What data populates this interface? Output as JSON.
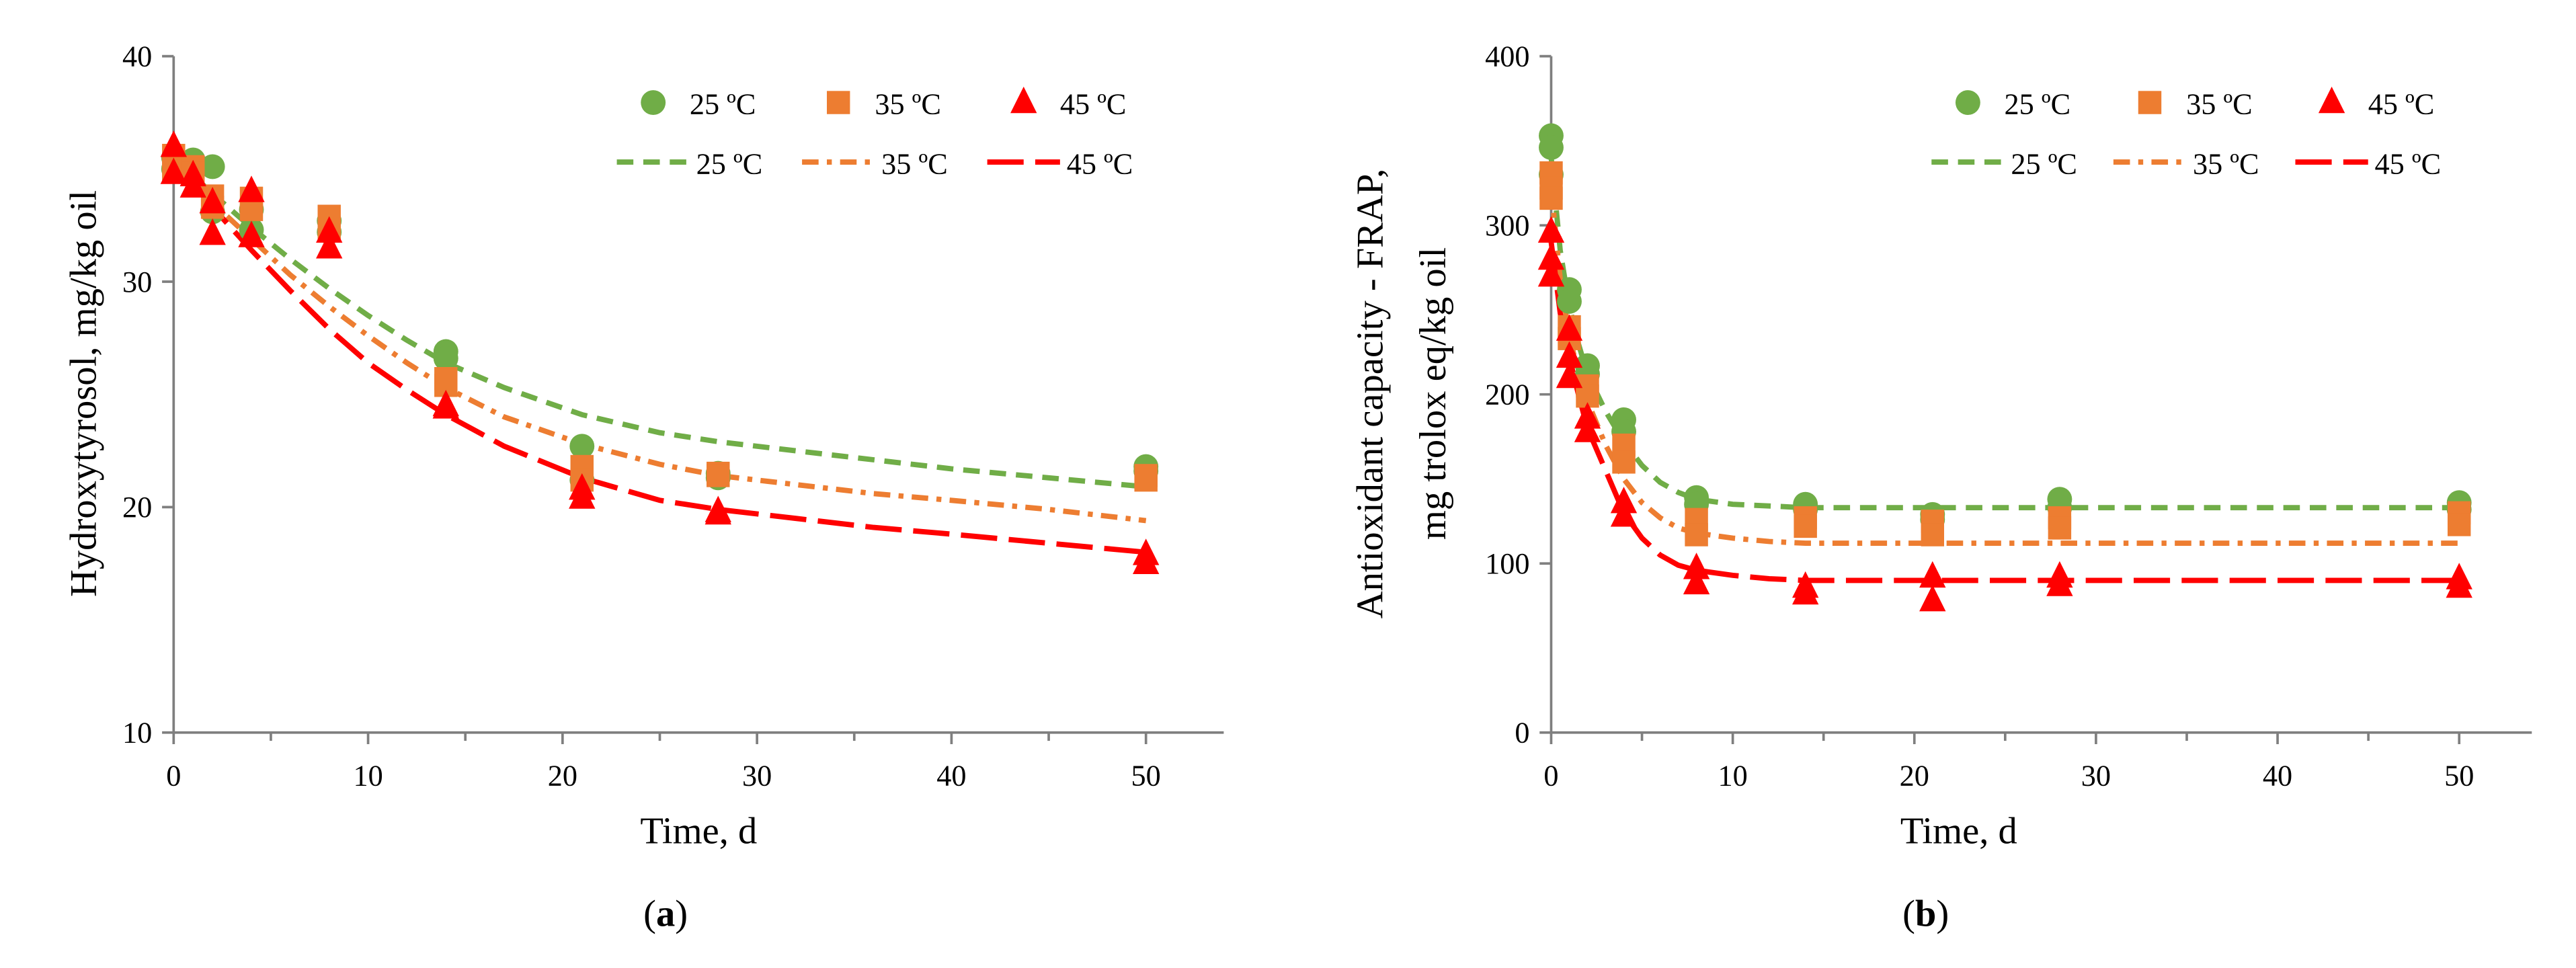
{
  "colors": {
    "c25": "#70AD47",
    "c35": "#ED7D31",
    "c45": "#FF0000",
    "axis": "#7F7F7F"
  },
  "chart_data": [
    {
      "type": "scatter",
      "panel_label": "a",
      "xlabel": "Time, d",
      "ylabel": "Hydroxytyrosol, mg/kg oil",
      "xlim": [
        0,
        54
      ],
      "ylim": [
        10,
        40
      ],
      "xticks": [
        0,
        10,
        20,
        30,
        40,
        50
      ],
      "yticks": [
        10,
        20,
        30,
        40
      ],
      "series": [
        {
          "name": "25 ºC",
          "kind": "points",
          "marker": "circle",
          "color": "#70AD47",
          "x": [
            0,
            0,
            1,
            1,
            2,
            2,
            4,
            4,
            8,
            8,
            14,
            14,
            21,
            21,
            28,
            28,
            50,
            50
          ],
          "y": [
            35.5,
            35.0,
            35.4,
            35.0,
            35.1,
            33.1,
            33.2,
            32.3,
            32.7,
            32.2,
            26.9,
            26.6,
            22.7,
            21.2,
            21.5,
            21.3,
            21.8,
            21.6
          ]
        },
        {
          "name": "35 ºC",
          "kind": "points",
          "marker": "square",
          "color": "#ED7D31",
          "x": [
            0,
            0,
            1,
            1,
            2,
            2,
            4,
            4,
            8,
            8,
            14,
            14,
            21,
            21,
            28,
            28,
            50,
            50
          ],
          "y": [
            35.6,
            35.0,
            35.1,
            34.8,
            33.8,
            33.3,
            33.7,
            33.2,
            32.9,
            32.4,
            25.7,
            25.4,
            21.8,
            21.2,
            21.5,
            21.4,
            21.4,
            21.2
          ]
        },
        {
          "name": "45 ºC",
          "kind": "points",
          "marker": "triangle",
          "color": "#FF0000",
          "x": [
            0,
            0,
            1,
            1,
            2,
            2,
            4,
            4,
            8,
            8,
            14,
            14,
            21,
            21,
            28,
            28,
            50,
            50
          ],
          "y": [
            36.0,
            34.8,
            34.7,
            34.2,
            33.5,
            32.1,
            34.0,
            32.0,
            32.2,
            31.5,
            24.5,
            24.4,
            20.8,
            20.4,
            19.8,
            19.7,
            17.9,
            17.5
          ]
        },
        {
          "name": "25 ºC",
          "kind": "line",
          "dash": "dash",
          "color": "#70AD47",
          "x": [
            0,
            2,
            4,
            6,
            8,
            10,
            12,
            14,
            17,
            21,
            25,
            28,
            32,
            36,
            40,
            45,
            50
          ],
          "y": [
            35.5,
            33.9,
            32.4,
            31.0,
            29.7,
            28.5,
            27.4,
            26.4,
            25.3,
            24.1,
            23.3,
            22.9,
            22.5,
            22.1,
            21.7,
            21.3,
            20.9
          ]
        },
        {
          "name": "35 ºC",
          "kind": "line",
          "dash": "dashdot",
          "color": "#ED7D31",
          "x": [
            0,
            2,
            4,
            6,
            8,
            10,
            12,
            14,
            17,
            21,
            25,
            28,
            32,
            36,
            40,
            45,
            50
          ],
          "y": [
            35.3,
            33.5,
            31.9,
            30.3,
            28.9,
            27.6,
            26.4,
            25.3,
            24.0,
            22.8,
            21.9,
            21.4,
            21.0,
            20.6,
            20.3,
            19.9,
            19.4
          ]
        },
        {
          "name": "45 ºC",
          "kind": "line",
          "dash": "longdash",
          "color": "#FF0000",
          "x": [
            0,
            2,
            4,
            6,
            8,
            10,
            12,
            14,
            17,
            21,
            25,
            28,
            32,
            36,
            40,
            45,
            50
          ],
          "y": [
            35.5,
            33.3,
            31.4,
            29.6,
            27.9,
            26.4,
            25.2,
            24.1,
            22.7,
            21.3,
            20.3,
            19.9,
            19.5,
            19.1,
            18.8,
            18.4,
            18.0
          ]
        }
      ],
      "legend": {
        "position": "top-right",
        "rows": [
          [
            {
              "label": "25 ºC",
              "marker": "circle",
              "color": "#70AD47"
            },
            {
              "label": "35 ºC",
              "marker": "square",
              "color": "#ED7D31"
            },
            {
              "label": "45 ºC",
              "marker": "triangle",
              "color": "#FF0000"
            }
          ],
          [
            {
              "label": "25 ºC",
              "line": "dash",
              "color": "#70AD47"
            },
            {
              "label": "35 ºC",
              "line": "dashdot",
              "color": "#ED7D31"
            },
            {
              "label": "45 ºC",
              "line": "longdash",
              "color": "#FF0000"
            }
          ]
        ]
      }
    },
    {
      "type": "scatter",
      "panel_label": "b",
      "xlabel": "Time, d",
      "ylabel": [
        "Antioxidant capacity - FRAP,",
        "mg trolox eq/kg oil"
      ],
      "xlim": [
        0,
        54
      ],
      "ylim": [
        0,
        400
      ],
      "xticks": [
        0,
        10,
        20,
        30,
        40,
        50
      ],
      "yticks": [
        0,
        100,
        200,
        300,
        400
      ],
      "series": [
        {
          "name": "25 ºC",
          "kind": "points",
          "marker": "circle",
          "color": "#70AD47",
          "x": [
            0,
            0,
            0,
            1,
            1,
            2,
            2,
            4,
            4,
            8,
            8,
            14,
            14,
            21,
            21,
            28,
            28,
            50,
            50
          ],
          "y": [
            353,
            346,
            330,
            262,
            255,
            217,
            212,
            185,
            178,
            139,
            135,
            135,
            132,
            129,
            126,
            138,
            133,
            136,
            132
          ]
        },
        {
          "name": "35 ºC",
          "kind": "points",
          "marker": "square",
          "color": "#ED7D31",
          "x": [
            0,
            0,
            0,
            1,
            1,
            2,
            2,
            4,
            4,
            8,
            8,
            14,
            14,
            21,
            21,
            28,
            28,
            50,
            50
          ],
          "y": [
            331,
            322,
            316,
            240,
            233,
            205,
            199,
            170,
            160,
            126,
            117,
            127,
            122,
            125,
            117,
            127,
            121,
            130,
            123
          ]
        },
        {
          "name": "45 ºC",
          "kind": "points",
          "marker": "triangle",
          "color": "#FF0000",
          "x": [
            0,
            0,
            0,
            1,
            1,
            1,
            2,
            2,
            4,
            4,
            8,
            8,
            14,
            14,
            21,
            21,
            28,
            28,
            50,
            50
          ],
          "y": [
            296,
            280,
            270,
            238,
            222,
            210,
            186,
            178,
            136,
            128,
            97,
            88,
            86,
            82,
            92,
            78,
            92,
            87,
            91,
            86
          ]
        },
        {
          "name": "25 ºC",
          "kind": "line",
          "dash": "dash",
          "color": "#70AD47",
          "x": [
            0,
            0.5,
            1,
            1.5,
            2,
            3,
            4,
            5,
            6,
            7,
            8,
            10,
            12,
            14,
            17,
            21,
            28,
            35,
            50
          ],
          "y": [
            340,
            285,
            252,
            230,
            212,
            190,
            172,
            158,
            148,
            142,
            138,
            135,
            134,
            133,
            133,
            133,
            133,
            133,
            133
          ]
        },
        {
          "name": "35 ºC",
          "kind": "line",
          "dash": "dashdot",
          "color": "#ED7D31",
          "x": [
            0,
            0.5,
            1,
            1.5,
            2,
            3,
            4,
            5,
            6,
            7,
            8,
            10,
            12,
            14,
            17,
            21,
            28,
            35,
            50
          ],
          "y": [
            322,
            268,
            235,
            212,
            196,
            170,
            150,
            136,
            127,
            121,
            118,
            115,
            113,
            112,
            112,
            112,
            112,
            112,
            112
          ]
        },
        {
          "name": "45 ºC",
          "kind": "line",
          "dash": "longdash",
          "color": "#FF0000",
          "x": [
            0,
            0.5,
            1,
            1.5,
            2,
            3,
            4,
            5,
            6,
            7,
            8,
            10,
            12,
            14,
            17,
            21,
            28,
            35,
            50
          ],
          "y": [
            290,
            248,
            222,
            200,
            180,
            155,
            130,
            115,
            105,
            99,
            96,
            93,
            91,
            90,
            90,
            90,
            90,
            90,
            90
          ]
        }
      ],
      "legend": {
        "position": "top-right",
        "rows": [
          [
            {
              "label": "25 ºC",
              "marker": "circle",
              "color": "#70AD47"
            },
            {
              "label": "35 ºC",
              "marker": "square",
              "color": "#ED7D31"
            },
            {
              "label": "45 ºC",
              "marker": "triangle",
              "color": "#FF0000"
            }
          ],
          [
            {
              "label": "25 ºC",
              "line": "dash",
              "color": "#70AD47"
            },
            {
              "label": "35 ºC",
              "line": "dashdot",
              "color": "#ED7D31"
            },
            {
              "label": "45 ºC",
              "line": "longdash",
              "color": "#FF0000"
            }
          ]
        ]
      }
    }
  ]
}
